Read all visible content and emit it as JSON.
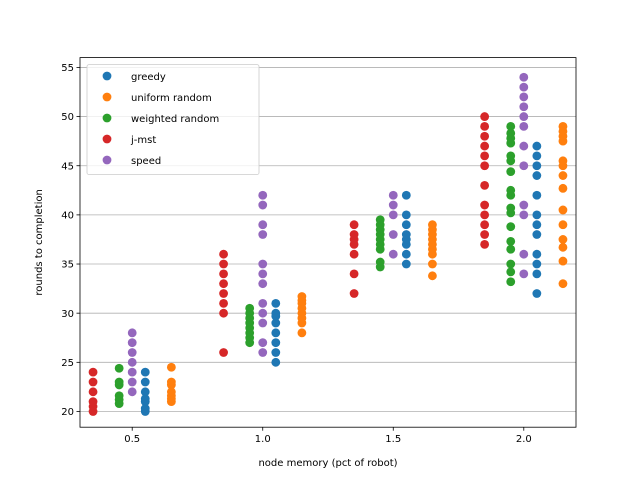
{
  "chart_data": {
    "type": "scatter",
    "xlabel": "node memory (pct of robot)",
    "ylabel": "rounds to completion",
    "xlim": [
      0.3,
      2.2
    ],
    "ylim": [
      18.4,
      56.0
    ],
    "xticks": [
      0.5,
      1.0,
      1.5,
      2.0
    ],
    "xtick_labels": [
      "0.5",
      "1.0",
      "1.5",
      "2.0"
    ],
    "yticks": [
      20,
      25,
      30,
      35,
      40,
      45,
      50,
      55
    ],
    "ytick_labels": [
      "20",
      "25",
      "30",
      "35",
      "40",
      "45",
      "50",
      "55"
    ],
    "grid": "horizontal",
    "legend_position": "upper-left",
    "series": [
      {
        "name": "greedy",
        "color": "#1f77b4",
        "points": [
          [
            0.55,
            20
          ],
          [
            0.55,
            20.3
          ],
          [
            0.55,
            21
          ],
          [
            0.55,
            21.3
          ],
          [
            0.55,
            22
          ],
          [
            0.55,
            23
          ],
          [
            0.55,
            24
          ],
          [
            1.05,
            25
          ],
          [
            1.05,
            26
          ],
          [
            1.05,
            27
          ],
          [
            1.05,
            28
          ],
          [
            1.05,
            29
          ],
          [
            1.05,
            29.7
          ],
          [
            1.05,
            30
          ],
          [
            1.05,
            31
          ],
          [
            1.55,
            35
          ],
          [
            1.55,
            36
          ],
          [
            1.55,
            37
          ],
          [
            1.55,
            37.5
          ],
          [
            1.55,
            38
          ],
          [
            1.55,
            39
          ],
          [
            1.55,
            40
          ],
          [
            1.55,
            42
          ],
          [
            2.05,
            32
          ],
          [
            2.05,
            34
          ],
          [
            2.05,
            35
          ],
          [
            2.05,
            36
          ],
          [
            2.05,
            38
          ],
          [
            2.05,
            39
          ],
          [
            2.05,
            40
          ],
          [
            2.05,
            42
          ],
          [
            2.05,
            44
          ],
          [
            2.05,
            45
          ],
          [
            2.05,
            46
          ],
          [
            2.05,
            47
          ]
        ]
      },
      {
        "name": "uniform random",
        "color": "#ff7f0e",
        "points": [
          [
            0.65,
            21
          ],
          [
            0.65,
            21.3
          ],
          [
            0.65,
            21.6
          ],
          [
            0.65,
            22
          ],
          [
            0.65,
            22.7
          ],
          [
            0.65,
            23
          ],
          [
            0.65,
            24.5
          ],
          [
            1.15,
            28
          ],
          [
            1.15,
            29
          ],
          [
            1.15,
            29.5
          ],
          [
            1.15,
            30
          ],
          [
            1.15,
            30.5
          ],
          [
            1.15,
            31
          ],
          [
            1.15,
            31.3
          ],
          [
            1.15,
            31.7
          ],
          [
            1.65,
            33.8
          ],
          [
            1.65,
            35
          ],
          [
            1.65,
            36
          ],
          [
            1.65,
            36.5
          ],
          [
            1.65,
            37
          ],
          [
            1.65,
            37.5
          ],
          [
            1.65,
            38
          ],
          [
            1.65,
            38.5
          ],
          [
            1.65,
            39
          ],
          [
            2.15,
            33
          ],
          [
            2.15,
            35.3
          ],
          [
            2.15,
            36.7
          ],
          [
            2.15,
            37.5
          ],
          [
            2.15,
            39
          ],
          [
            2.15,
            40.5
          ],
          [
            2.15,
            42.7
          ],
          [
            2.15,
            44
          ],
          [
            2.15,
            45
          ],
          [
            2.15,
            45.5
          ],
          [
            2.15,
            47.5
          ],
          [
            2.15,
            48
          ],
          [
            2.15,
            48.5
          ],
          [
            2.15,
            49
          ]
        ]
      },
      {
        "name": "weighted random",
        "color": "#2ca02c",
        "points": [
          [
            0.45,
            20.8
          ],
          [
            0.45,
            21.2
          ],
          [
            0.45,
            21.6
          ],
          [
            0.45,
            22.7
          ],
          [
            0.45,
            23
          ],
          [
            0.45,
            24.4
          ],
          [
            0.95,
            27
          ],
          [
            0.95,
            27.5
          ],
          [
            0.95,
            28
          ],
          [
            0.95,
            28.5
          ],
          [
            0.95,
            29
          ],
          [
            0.95,
            29.5
          ],
          [
            0.95,
            30
          ],
          [
            0.95,
            30.5
          ],
          [
            1.45,
            34.7
          ],
          [
            1.45,
            35.2
          ],
          [
            1.45,
            36.5
          ],
          [
            1.45,
            37
          ],
          [
            1.45,
            37.5
          ],
          [
            1.45,
            38
          ],
          [
            1.45,
            38.5
          ],
          [
            1.45,
            39
          ],
          [
            1.45,
            39.5
          ],
          [
            1.95,
            33.2
          ],
          [
            1.95,
            34.2
          ],
          [
            1.95,
            35
          ],
          [
            1.95,
            36.5
          ],
          [
            1.95,
            37.3
          ],
          [
            1.95,
            38.8
          ],
          [
            1.95,
            40.2
          ],
          [
            1.95,
            40.7
          ],
          [
            1.95,
            42
          ],
          [
            1.95,
            42.5
          ],
          [
            1.95,
            44.4
          ],
          [
            1.95,
            45.5
          ],
          [
            1.95,
            46
          ],
          [
            1.95,
            47.3
          ],
          [
            1.95,
            47.8
          ],
          [
            1.95,
            48.3
          ],
          [
            1.95,
            49
          ]
        ]
      },
      {
        "name": "j-mst",
        "color": "#d62728",
        "points": [
          [
            0.35,
            20
          ],
          [
            0.35,
            20.5
          ],
          [
            0.35,
            21
          ],
          [
            0.35,
            22
          ],
          [
            0.35,
            23
          ],
          [
            0.35,
            24
          ],
          [
            0.85,
            26
          ],
          [
            0.85,
            30
          ],
          [
            0.85,
            31
          ],
          [
            0.85,
            32
          ],
          [
            0.85,
            33
          ],
          [
            0.85,
            34
          ],
          [
            0.85,
            35
          ],
          [
            0.85,
            36
          ],
          [
            1.35,
            32
          ],
          [
            1.35,
            34
          ],
          [
            1.35,
            36
          ],
          [
            1.35,
            37
          ],
          [
            1.35,
            37.5
          ],
          [
            1.35,
            38
          ],
          [
            1.35,
            39
          ],
          [
            1.85,
            37
          ],
          [
            1.85,
            38
          ],
          [
            1.85,
            39
          ],
          [
            1.85,
            40
          ],
          [
            1.85,
            41
          ],
          [
            1.85,
            43
          ],
          [
            1.85,
            45
          ],
          [
            1.85,
            46
          ],
          [
            1.85,
            47
          ],
          [
            1.85,
            48
          ],
          [
            1.85,
            49
          ],
          [
            1.85,
            50
          ]
        ]
      },
      {
        "name": "speed",
        "color": "#9467bd",
        "points": [
          [
            0.5,
            22
          ],
          [
            0.5,
            23
          ],
          [
            0.5,
            24
          ],
          [
            0.5,
            25
          ],
          [
            0.5,
            26
          ],
          [
            0.5,
            27
          ],
          [
            0.5,
            28
          ],
          [
            1.0,
            26
          ],
          [
            1.0,
            27
          ],
          [
            1.0,
            29
          ],
          [
            1.0,
            30
          ],
          [
            1.0,
            31
          ],
          [
            1.0,
            33
          ],
          [
            1.0,
            34
          ],
          [
            1.0,
            35
          ],
          [
            1.0,
            38
          ],
          [
            1.0,
            39
          ],
          [
            1.0,
            41
          ],
          [
            1.0,
            42
          ],
          [
            1.5,
            36
          ],
          [
            1.5,
            38
          ],
          [
            1.5,
            40
          ],
          [
            1.5,
            41
          ],
          [
            1.5,
            42
          ],
          [
            2.0,
            34
          ],
          [
            2.0,
            36
          ],
          [
            2.0,
            40
          ],
          [
            2.0,
            41
          ],
          [
            2.0,
            45
          ],
          [
            2.0,
            47
          ],
          [
            2.0,
            49
          ],
          [
            2.0,
            50
          ],
          [
            2.0,
            51
          ],
          [
            2.0,
            52
          ],
          [
            2.0,
            53
          ],
          [
            2.0,
            54
          ]
        ]
      }
    ]
  }
}
